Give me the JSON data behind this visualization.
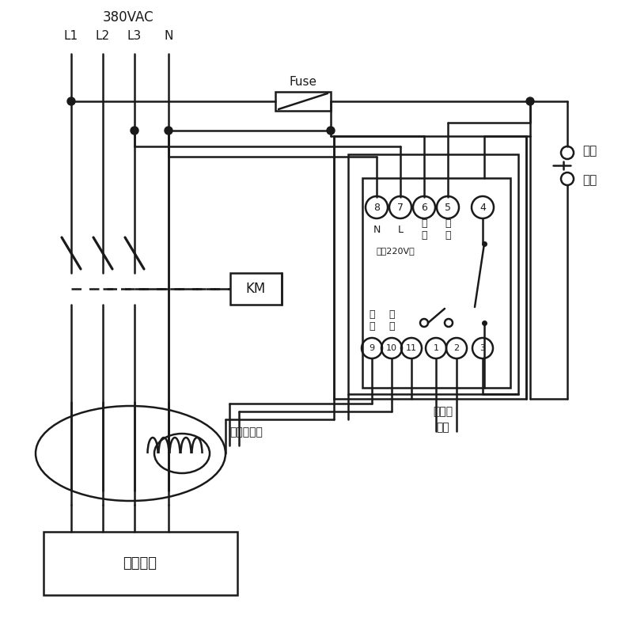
{
  "bg": "#ffffff",
  "lc": "#1a1a1a",
  "voltage": "380VAC",
  "phases": [
    "L1",
    "L2",
    "L3",
    "N"
  ],
  "fuse": "Fuse",
  "km": "KM",
  "trans_label": "零序互感器",
  "user_label": "用户设备",
  "selflock": [
    "自锁",
    "开关"
  ],
  "alarm": [
    "接声光",
    "报警"
  ],
  "top_t": [
    "8",
    "7",
    "6",
    "5",
    "4"
  ],
  "bot_t": [
    "9",
    "10",
    "11",
    "1",
    "2",
    "3"
  ],
  "power220": "电源220V～",
  "nl_labels": [
    "N",
    "L",
    "试\n验",
    "试\n验"
  ],
  "sig_labels": [
    "信\n号",
    "信\n号"
  ]
}
